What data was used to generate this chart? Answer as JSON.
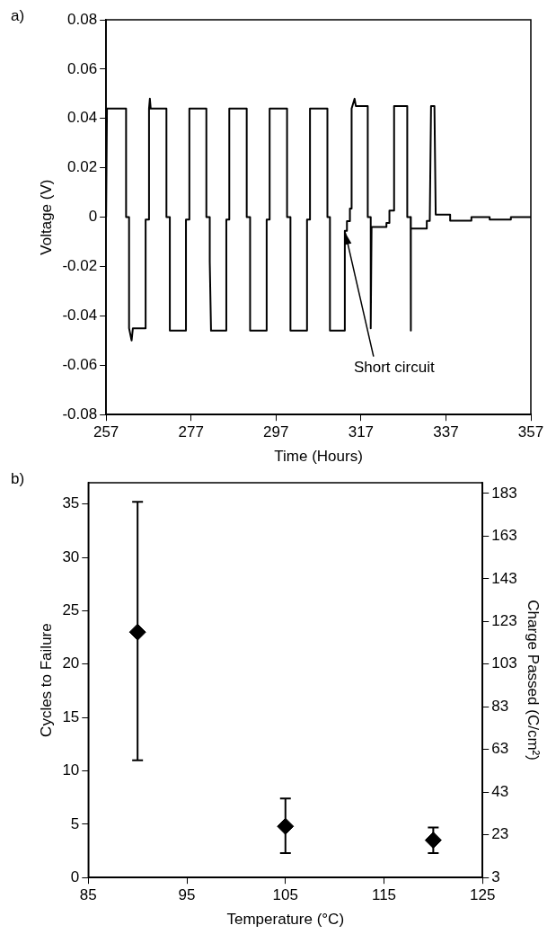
{
  "chart_data": [
    {
      "type": "line",
      "xlabel": "Time (Hours)",
      "ylabel": "Voltage (V)",
      "xlim": [
        257,
        357
      ],
      "xticks": [
        257,
        277,
        297,
        317,
        337,
        357
      ],
      "ylim": [
        -0.08,
        0.08
      ],
      "yticks": [
        -0.08,
        -0.06,
        -0.04,
        -0.02,
        0,
        0.02,
        0.04,
        0.06,
        0.08
      ],
      "grid": false,
      "marker": "none",
      "line_style": "solid",
      "color": "#000000",
      "x": [
        257,
        257.2,
        261.7,
        261.7,
        262.4,
        262.4,
        263.0,
        263.3,
        266.3,
        266.3,
        267.1,
        267.1,
        267.3,
        267.5,
        271.2,
        271.2,
        272,
        272,
        275.8,
        275.8,
        276.6,
        276.6,
        280.6,
        280.6,
        281.4,
        281.4,
        281.7,
        285.3,
        285.3,
        286,
        286,
        290.1,
        290.1,
        290.9,
        290.9,
        294.8,
        294.8,
        295.5,
        295.5,
        299.6,
        299.6,
        300.4,
        300.4,
        304.3,
        304.3,
        305,
        305,
        309.1,
        309.1,
        309.7,
        309.7,
        313.2,
        313.2,
        313.7,
        313.7,
        314.4,
        314.4,
        314.8,
        314.8,
        315.5,
        315.8,
        318.6,
        318.6,
        319.3,
        319.3,
        319.5,
        323,
        323,
        323.7,
        323.7,
        324.8,
        324.8,
        327.9,
        327.9,
        328.7,
        328.7,
        328.8,
        332.5,
        332.5,
        333.2,
        333.5,
        334.3,
        334.6,
        338,
        338,
        343,
        343,
        347.3,
        347.3,
        352.3,
        352.3,
        357
      ],
      "values": [
        0,
        0.044,
        0.044,
        0,
        0,
        -0.045,
        -0.05,
        -0.045,
        -0.045,
        -0.001,
        -0.001,
        0.044,
        0.048,
        0.044,
        0.044,
        0,
        0,
        -0.046,
        -0.046,
        -0.001,
        -0.001,
        0.044,
        0.044,
        0,
        0,
        -0.018,
        -0.046,
        -0.046,
        -0.001,
        -0.001,
        0.044,
        0.044,
        0,
        0,
        -0.046,
        -0.046,
        -0.001,
        -0.001,
        0.044,
        0.044,
        0,
        0,
        -0.046,
        -0.046,
        -0.001,
        -0.001,
        0.044,
        0.044,
        0,
        0,
        -0.046,
        -0.046,
        -0.0055,
        -0.0055,
        -0.0016,
        -0.0016,
        0.0035,
        0.0035,
        0.044,
        0.048,
        0.045,
        0.045,
        0,
        0,
        -0.045,
        -0.004,
        -0.004,
        -0.0023,
        -0.0023,
        0.0027,
        0.0027,
        0.045,
        0.045,
        0,
        0,
        -0.046,
        -0.0046,
        -0.0046,
        -0.0015,
        -0.0015,
        0.045,
        0.045,
        0.001,
        0.001,
        -0.0014,
        -0.0014,
        0,
        0,
        -0.001,
        -0.001,
        0,
        0
      ],
      "annotations": [
        "a)",
        {
          "text": "Short circuit",
          "x": 313.2,
          "y": -0.0055
        }
      ]
    },
    {
      "type": "scatter",
      "xlabel": "Temperature (°C)",
      "ylabel": "Cycles to Failure",
      "y2label": "Charge Passed (C/cm²)",
      "xlim": [
        85,
        125
      ],
      "xticks": [
        85,
        95,
        105,
        115,
        125
      ],
      "ylim": [
        0,
        37
      ],
      "yticks": [
        0,
        5,
        10,
        15,
        20,
        25,
        30,
        35
      ],
      "y2lim": [
        3,
        188
      ],
      "y2ticks": [
        3,
        23,
        43,
        63,
        83,
        103,
        123,
        143,
        163,
        183
      ],
      "grid": false,
      "marker": "diamond",
      "color": "#000000",
      "x": [
        90,
        105,
        120
      ],
      "values": [
        23,
        4.8,
        3.5
      ],
      "errors": [
        [
          11,
          35.2
        ],
        [
          2.3,
          7.4
        ],
        [
          2.3,
          4.7
        ]
      ],
      "annotations": [
        "b)"
      ]
    }
  ]
}
